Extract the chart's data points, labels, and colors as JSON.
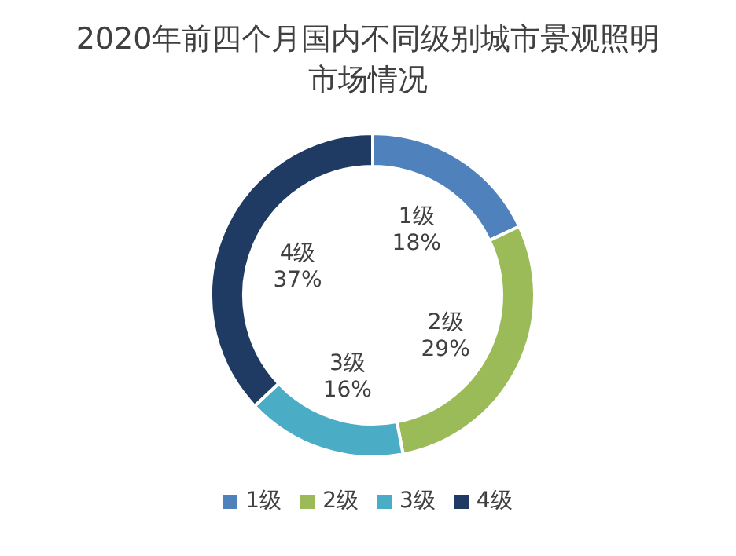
{
  "chart_data": {
    "type": "donut",
    "title": "2020年前四个月国内不同级别城市景观照明市场情况",
    "categories": [
      "1级",
      "2级",
      "3级",
      "4级"
    ],
    "values": [
      18,
      29,
      16,
      37
    ],
    "colors": [
      "#4f81bd",
      "#9bbb59",
      "#4bacc6",
      "#1f3b64"
    ],
    "value_labels": [
      "18%",
      "29%",
      "16%",
      "37%"
    ],
    "legend": "bottom"
  }
}
